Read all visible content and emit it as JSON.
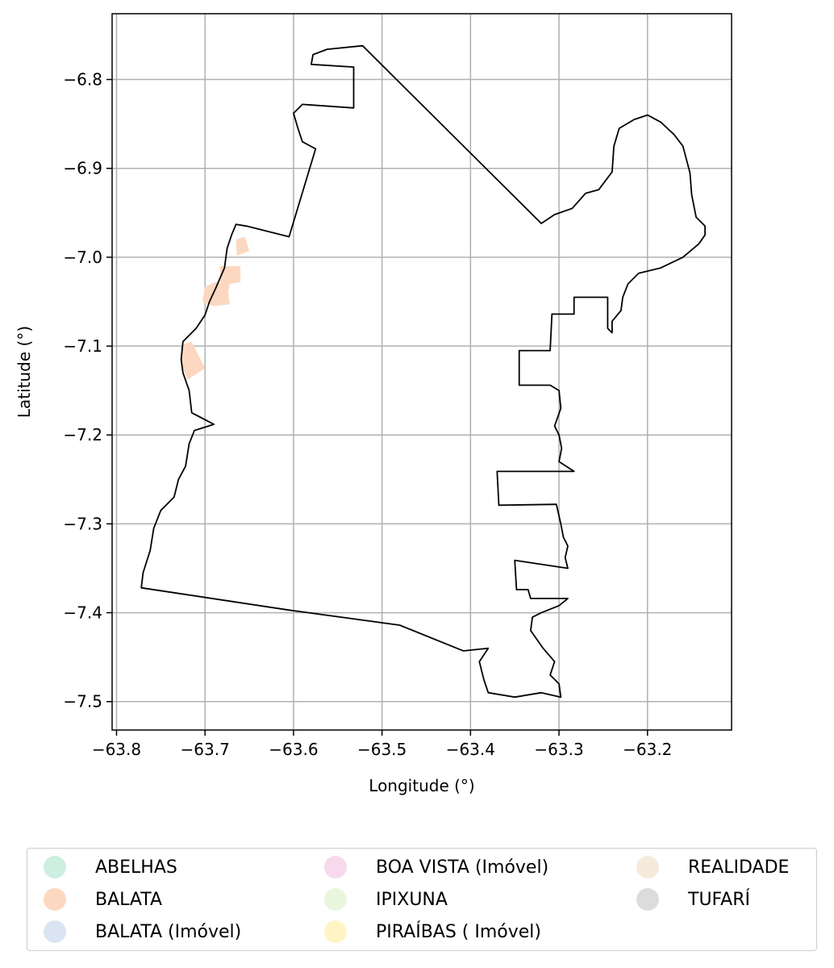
{
  "chart_data": {
    "type": "map",
    "xlabel": "Longitude (°)",
    "ylabel": "Latitude (°)",
    "xlim": [
      -63.805,
      -63.105
    ],
    "ylim": [
      -7.532,
      -6.726
    ],
    "grid": true,
    "x_ticks": [
      -63.8,
      -63.7,
      -63.6,
      -63.5,
      -63.4,
      -63.3,
      -63.2
    ],
    "x_tick_labels": [
      "−63.8",
      "−63.7",
      "−63.6",
      "−63.5",
      "−63.4",
      "−63.3",
      "−63.2"
    ],
    "y_ticks": [
      -6.8,
      -6.9,
      -7.0,
      -7.1,
      -7.2,
      -7.3,
      -7.4,
      -7.5
    ],
    "y_tick_labels": [
      "−6.8",
      "−6.9",
      "−7.0",
      "−7.1",
      "−7.2",
      "−7.3",
      "−7.4",
      "−7.5"
    ],
    "boundary": [
      [
        -63.522,
        -6.762
      ],
      [
        -63.32,
        -6.962
      ],
      [
        -63.305,
        -6.952
      ],
      [
        -63.285,
        -6.945
      ],
      [
        -63.27,
        -6.928
      ],
      [
        -63.255,
        -6.924
      ],
      [
        -63.24,
        -6.904
      ],
      [
        -63.238,
        -6.875
      ],
      [
        -63.232,
        -6.855
      ],
      [
        -63.215,
        -6.845
      ],
      [
        -63.2,
        -6.84
      ],
      [
        -63.185,
        -6.848
      ],
      [
        -63.17,
        -6.862
      ],
      [
        -63.16,
        -6.875
      ],
      [
        -63.152,
        -6.905
      ],
      [
        -63.15,
        -6.93
      ],
      [
        -63.145,
        -6.955
      ],
      [
        -63.135,
        -6.965
      ],
      [
        -63.135,
        -6.975
      ],
      [
        -63.142,
        -6.985
      ],
      [
        -63.16,
        -7.0
      ],
      [
        -63.185,
        -7.012
      ],
      [
        -63.21,
        -7.018
      ],
      [
        -63.222,
        -7.03
      ],
      [
        -63.228,
        -7.045
      ],
      [
        -63.23,
        -7.06
      ],
      [
        -63.24,
        -7.072
      ],
      [
        -63.24,
        -7.085
      ],
      [
        -63.245,
        -7.08
      ],
      [
        -63.245,
        -7.045
      ],
      [
        -63.283,
        -7.045
      ],
      [
        -63.283,
        -7.064
      ],
      [
        -63.308,
        -7.064
      ],
      [
        -63.31,
        -7.105
      ],
      [
        -63.345,
        -7.105
      ],
      [
        -63.345,
        -7.144
      ],
      [
        -63.31,
        -7.144
      ],
      [
        -63.3,
        -7.15
      ],
      [
        -63.298,
        -7.17
      ],
      [
        -63.305,
        -7.19
      ],
      [
        -63.3,
        -7.2
      ],
      [
        -63.297,
        -7.215
      ],
      [
        -63.3,
        -7.23
      ],
      [
        -63.283,
        -7.241
      ],
      [
        -63.37,
        -7.241
      ],
      [
        -63.368,
        -7.279
      ],
      [
        -63.303,
        -7.278
      ],
      [
        -63.298,
        -7.3
      ],
      [
        -63.295,
        -7.315
      ],
      [
        -63.29,
        -7.325
      ],
      [
        -63.293,
        -7.338
      ],
      [
        -63.29,
        -7.35
      ],
      [
        -63.35,
        -7.341
      ],
      [
        -63.348,
        -7.374
      ],
      [
        -63.335,
        -7.374
      ],
      [
        -63.332,
        -7.384
      ],
      [
        -63.29,
        -7.384
      ],
      [
        -63.3,
        -7.392
      ],
      [
        -63.32,
        -7.4
      ],
      [
        -63.33,
        -7.405
      ],
      [
        -63.332,
        -7.42
      ],
      [
        -63.318,
        -7.44
      ],
      [
        -63.305,
        -7.455
      ],
      [
        -63.31,
        -7.47
      ],
      [
        -63.3,
        -7.48
      ],
      [
        -63.298,
        -7.495
      ],
      [
        -63.32,
        -7.49
      ],
      [
        -63.35,
        -7.495
      ],
      [
        -63.38,
        -7.49
      ],
      [
        -63.385,
        -7.475
      ],
      [
        -63.39,
        -7.455
      ],
      [
        -63.38,
        -7.44
      ],
      [
        -63.408,
        -7.443
      ],
      [
        -63.48,
        -7.414
      ],
      [
        -63.605,
        -7.397
      ],
      [
        -63.772,
        -7.372
      ],
      [
        -63.77,
        -7.355
      ],
      [
        -63.762,
        -7.33
      ],
      [
        -63.758,
        -7.305
      ],
      [
        -63.75,
        -7.285
      ],
      [
        -63.735,
        -7.27
      ],
      [
        -63.73,
        -7.25
      ],
      [
        -63.722,
        -7.235
      ],
      [
        -63.718,
        -7.21
      ],
      [
        -63.712,
        -7.195
      ],
      [
        -63.69,
        -7.188
      ],
      [
        -63.715,
        -7.175
      ],
      [
        -63.718,
        -7.15
      ],
      [
        -63.725,
        -7.13
      ],
      [
        -63.727,
        -7.115
      ],
      [
        -63.725,
        -7.095
      ],
      [
        -63.71,
        -7.08
      ],
      [
        -63.7,
        -7.065
      ],
      [
        -63.695,
        -7.05
      ],
      [
        -63.688,
        -7.035
      ],
      [
        -63.678,
        -7.012
      ],
      [
        -63.675,
        -6.99
      ],
      [
        -63.67,
        -6.975
      ],
      [
        -63.665,
        -6.963
      ],
      [
        -63.653,
        -6.965
      ],
      [
        -63.605,
        -6.977
      ],
      [
        -63.575,
        -6.878
      ],
      [
        -63.59,
        -6.87
      ],
      [
        -63.595,
        -6.855
      ],
      [
        -63.6,
        -6.838
      ],
      [
        -63.59,
        -6.828
      ],
      [
        -63.532,
        -6.832
      ],
      [
        -63.532,
        -6.786
      ],
      [
        -63.58,
        -6.783
      ],
      [
        -63.578,
        -6.772
      ],
      [
        -63.562,
        -6.766
      ],
      [
        -63.522,
        -6.762
      ]
    ],
    "polygons": [
      {
        "class": "BALATA",
        "color": "#fdd8c0",
        "points": [
          [
            -63.665,
            -6.98
          ],
          [
            -63.655,
            -6.977
          ],
          [
            -63.65,
            -6.993
          ],
          [
            -63.664,
            -6.998
          ]
        ]
      },
      {
        "class": "BALATA",
        "color": "#fdd8c0",
        "points": [
          [
            -63.683,
            -7.01
          ],
          [
            -63.66,
            -7.01
          ],
          [
            -63.66,
            -7.028
          ],
          [
            -63.672,
            -7.03
          ],
          [
            -63.675,
            -7.045
          ],
          [
            -63.683,
            -7.048
          ]
        ]
      },
      {
        "class": "BALATA",
        "color": "#fdd8c0",
        "points": [
          [
            -63.7,
            -7.033
          ],
          [
            -63.688,
            -7.028
          ],
          [
            -63.675,
            -7.03
          ],
          [
            -63.672,
            -7.053
          ],
          [
            -63.69,
            -7.055
          ],
          [
            -63.703,
            -7.05
          ]
        ]
      },
      {
        "class": "BALATA",
        "color": "#fdd8c0",
        "points": [
          [
            -63.725,
            -7.098
          ],
          [
            -63.715,
            -7.095
          ],
          [
            -63.7,
            -7.125
          ],
          [
            -63.72,
            -7.138
          ],
          [
            -63.727,
            -7.12
          ]
        ]
      }
    ]
  },
  "legend": {
    "columns": [
      [
        {
          "label": "ABELHAS",
          "color": "#cdeee0"
        },
        {
          "label": "BALATA",
          "color": "#fdd8c0"
        },
        {
          "label": "BALATA (Imóvel)",
          "color": "#dbe4f2"
        }
      ],
      [
        {
          "label": "BOA VISTA (Imóvel)",
          "color": "#f7d9ee"
        },
        {
          "label": "IPIXUNA",
          "color": "#eaf6dc"
        },
        {
          "label": "PIRAÍBAS ( Imóvel)",
          "color": "#fff4c6"
        }
      ],
      [
        {
          "label": "REALIDADE",
          "color": "#f5eadb"
        },
        {
          "label": "TUFARÍ",
          "color": "#dcdcdc"
        }
      ]
    ]
  }
}
